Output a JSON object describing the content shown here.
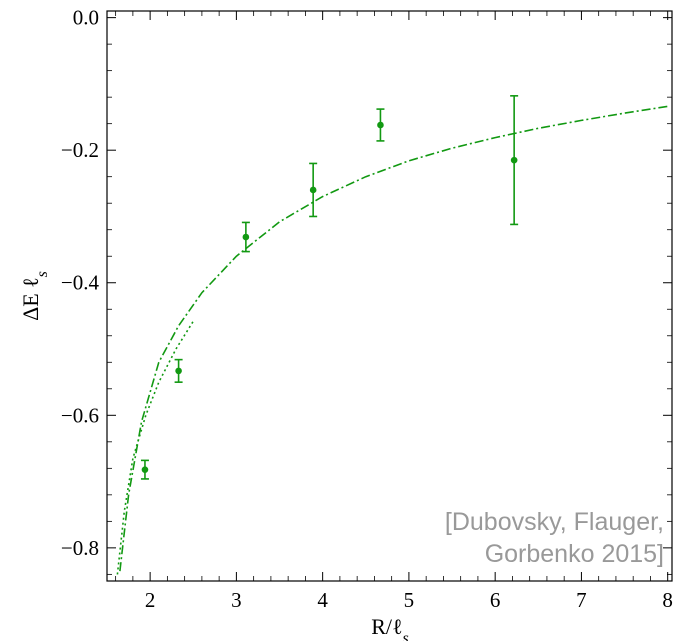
{
  "chart_data": {
    "type": "scatter",
    "title": "",
    "xlabel": "R/ℓs",
    "ylabel": "ΔE ℓs",
    "xlim": [
      1.5,
      8.05
    ],
    "ylim": [
      -0.85,
      0.01
    ],
    "x_ticks": [
      2,
      3,
      4,
      5,
      6,
      7,
      8
    ],
    "x_tick_labels": [
      "2",
      "3",
      "4",
      "5",
      "6",
      "7",
      "8"
    ],
    "y_ticks": [
      0.0,
      -0.2,
      -0.4,
      -0.6,
      -0.8
    ],
    "y_tick_labels": [
      "0.0",
      "−0.2",
      "−0.4",
      "−0.6",
      "−0.8"
    ],
    "grid": false,
    "colors": {
      "series": "#129912",
      "credit": "#999999"
    },
    "series": [
      {
        "type": "scatter-errorbars",
        "x": [
          1.94,
          2.33,
          3.11,
          3.89,
          4.67,
          6.22
        ],
        "y": [
          -0.682,
          -0.533,
          -0.331,
          -0.26,
          -0.162,
          -0.215
        ],
        "yerr": [
          0.014,
          0.017,
          0.022,
          0.04,
          0.024,
          0.097
        ]
      },
      {
        "type": "line",
        "dash": "dash-dot",
        "x": [
          1.65,
          1.75,
          1.9,
          2.1,
          2.33,
          2.6,
          3.0,
          3.5,
          4.0,
          4.5,
          5.0,
          5.5,
          6.0,
          6.5,
          7.0,
          7.5,
          8.0
        ],
        "y": [
          -0.835,
          -0.72,
          -0.61,
          -0.52,
          -0.465,
          -0.415,
          -0.36,
          -0.308,
          -0.27,
          -0.24,
          -0.216,
          -0.197,
          -0.181,
          -0.167,
          -0.155,
          -0.144,
          -0.134
        ]
      },
      {
        "type": "line",
        "dash": "dotted",
        "x": [
          1.62,
          1.7,
          1.8,
          1.95,
          2.1,
          2.3,
          2.5
        ],
        "y": [
          -0.84,
          -0.745,
          -0.665,
          -0.6,
          -0.55,
          -0.5,
          -0.458
        ]
      }
    ],
    "annotations": [
      "[Dubovsky, Flauger,",
      "Gorbenko 2015]"
    ]
  }
}
